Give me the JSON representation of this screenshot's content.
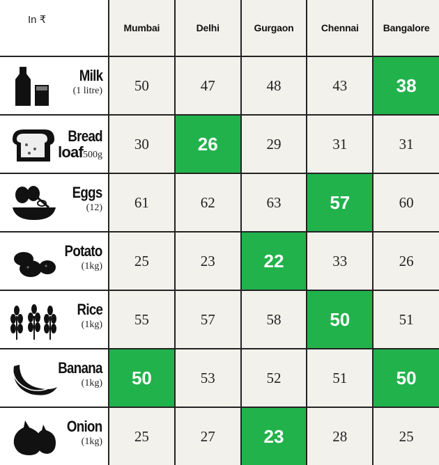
{
  "chart_data": {
    "type": "table",
    "unit_label": "In ₹",
    "columns": [
      "Mumbai",
      "Delhi",
      "Gurgaon",
      "Chennai",
      "Bangalore"
    ],
    "rows": [
      {
        "item": "Milk",
        "qty": "(1 litre)",
        "icon": "milk-bottle-glass-icon",
        "values": [
          "50",
          "47",
          "48",
          "43",
          "38"
        ],
        "highlight": [
          false,
          false,
          false,
          false,
          true
        ]
      },
      {
        "item": "Bread loaf",
        "item_line1": "Bread",
        "item_line2": "loaf",
        "qty": "500g",
        "icon": "bread-loaf-icon",
        "values": [
          "30",
          "26",
          "29",
          "31",
          "31"
        ],
        "highlight": [
          false,
          true,
          false,
          false,
          false
        ]
      },
      {
        "item": "Eggs",
        "qty": "(12)",
        "icon": "eggs-whisk-bowl-icon",
        "values": [
          "61",
          "62",
          "63",
          "57",
          "60"
        ],
        "highlight": [
          false,
          false,
          false,
          true,
          false
        ]
      },
      {
        "item": "Potato",
        "qty": "(1kg)",
        "icon": "potato-icon",
        "values": [
          "25",
          "23",
          "22",
          "33",
          "26"
        ],
        "highlight": [
          false,
          false,
          true,
          false,
          false
        ]
      },
      {
        "item": "Rice",
        "qty": "(1kg)",
        "icon": "rice-stalk-icon",
        "values": [
          "55",
          "57",
          "58",
          "50",
          "51"
        ],
        "highlight": [
          false,
          false,
          false,
          true,
          false
        ]
      },
      {
        "item": "Banana",
        "qty": "(1kg)",
        "icon": "banana-icon",
        "values": [
          "50",
          "53",
          "52",
          "51",
          "50"
        ],
        "highlight": [
          true,
          false,
          false,
          false,
          true
        ]
      },
      {
        "item": "Onion",
        "qty": "(1kg)",
        "icon": "onion-icon",
        "values": [
          "25",
          "27",
          "23",
          "28",
          "25"
        ],
        "highlight": [
          false,
          false,
          true,
          false,
          false
        ]
      }
    ],
    "colors": {
      "highlight": "#22b24c",
      "cell_bg": "#f2f1ec",
      "border": "#222222"
    }
  }
}
